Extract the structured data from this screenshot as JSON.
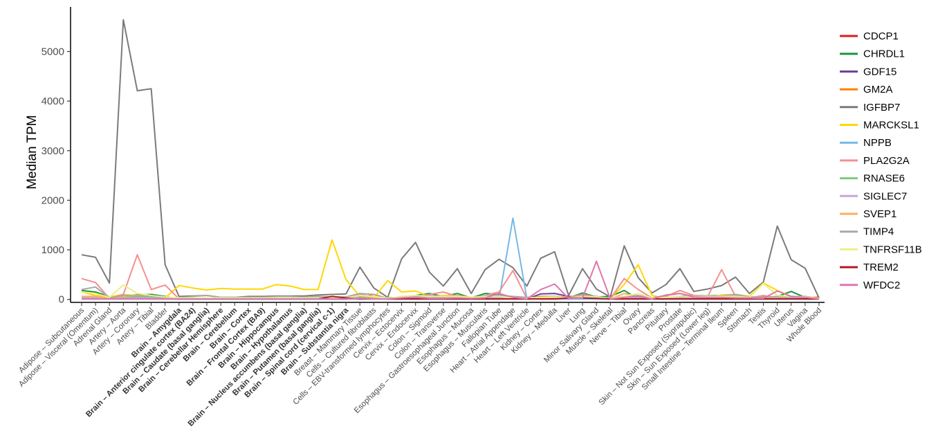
{
  "chart_data": {
    "type": "line",
    "title": "",
    "xlabel": "",
    "ylabel": "Median TPM",
    "ylim": [
      -60,
      5900
    ],
    "yticks": [
      0,
      1000,
      2000,
      3000,
      4000,
      5000
    ],
    "grid": false,
    "legend_position": "right",
    "categories": [
      "Adipose – Subcutaneous",
      "Adipose – Visceral (Omentum)",
      "Adrenal Gland",
      "Artery – Aorta",
      "Artery – Coronary",
      "Artery – Tibial",
      "Bladder",
      "Brain – Amygdala",
      "Brain – Anterior cingulate cortex (BA24)",
      "Brain – Caudate (basal ganglia)",
      "Brain – Cerebellar Hemisphere",
      "Brain – Cerebellum",
      "Brain – Cortex",
      "Brain – Frontal Cortex (BA9)",
      "Brain – Hippocampus",
      "Brain – Hypothalamus",
      "Brain – Nucleus accumbens (basal ganglia)",
      "Brain – Putamen (basal ganglia)",
      "Brain – Spinal cord (cervical c-1)",
      "Brain – Substantia nigra",
      "Breast – Mammary Tissue",
      "Cells – Cultured fibroblasts",
      "Cells – EBV-transformed lymphocytes",
      "Cervix – Ectocervix",
      "Cervix – Endocervix",
      "Colon – Sigmoid",
      "Colon – Transverse",
      "Esophagus – Gastroesophageal Junction",
      "Esophagus – Mucosa",
      "Esophagus – Muscularis",
      "Fallopian Tube",
      "Heart – Atrial Appendage",
      "Heart – Left Ventricle",
      "Kidney – Cortex",
      "Kidney – Medulla",
      "Liver",
      "Lung",
      "Minor Salivary Gland",
      "Muscle – Skeletal",
      "Nerve – Tibial",
      "Ovary",
      "Pancreas",
      "Pituitary",
      "Prostate",
      "Skin – Not Sun Exposed (Suprapubic)",
      "Skin – Sun Exposed (Lower leg)",
      "Small Intestine – Terminal Ileum",
      "Spleen",
      "Stomach",
      "Testis",
      "Thyroid",
      "Uterus",
      "Vagina",
      "Whole Blood"
    ],
    "bold_categories": [
      "Brain – Amygdala",
      "Brain – Anterior cingulate cortex (BA24)",
      "Brain – Caudate (basal ganglia)",
      "Brain – Cerebellar Hemisphere",
      "Brain – Cerebellum",
      "Brain – Cortex",
      "Brain – Frontal Cortex (BA9)",
      "Brain – Hippocampus",
      "Brain – Hypothalamus",
      "Brain – Nucleus accumbens (basal ganglia)",
      "Brain – Putamen (basal ganglia)",
      "Brain – Spinal cord (cervical c-1)",
      "Brain – Substantia nigra"
    ],
    "series": [
      {
        "name": "CDCP1",
        "color": "#e41a1c",
        "values": [
          20,
          20,
          10,
          10,
          15,
          15,
          10,
          5,
          5,
          5,
          5,
          5,
          5,
          5,
          5,
          5,
          5,
          5,
          5,
          5,
          20,
          30,
          5,
          10,
          10,
          20,
          15,
          30,
          20,
          10,
          20,
          10,
          5,
          20,
          20,
          5,
          30,
          20,
          5,
          10,
          10,
          10,
          20,
          20,
          20,
          20,
          20,
          10,
          15,
          5,
          20,
          10,
          10,
          5
        ]
      },
      {
        "name": "CHRDL1",
        "color": "#1a9641",
        "values": [
          180,
          150,
          50,
          80,
          90,
          100,
          60,
          5,
          5,
          5,
          5,
          5,
          5,
          5,
          5,
          5,
          5,
          5,
          5,
          5,
          100,
          40,
          5,
          40,
          80,
          120,
          60,
          120,
          30,
          120,
          100,
          20,
          5,
          20,
          40,
          30,
          130,
          50,
          60,
          180,
          10,
          20,
          20,
          60,
          80,
          70,
          80,
          50,
          30,
          20,
          60,
          160,
          40,
          10
        ]
      },
      {
        "name": "GDF15",
        "color": "#6a3d9a",
        "values": [
          20,
          20,
          30,
          10,
          10,
          20,
          10,
          10,
          10,
          10,
          10,
          10,
          10,
          10,
          10,
          10,
          10,
          10,
          10,
          10,
          20,
          30,
          10,
          20,
          20,
          20,
          20,
          20,
          30,
          20,
          40,
          20,
          10,
          110,
          120,
          60,
          50,
          30,
          20,
          30,
          20,
          20,
          30,
          30,
          30,
          30,
          20,
          20,
          30,
          20,
          30,
          20,
          20,
          10
        ]
      },
      {
        "name": "GM2A",
        "color": "#ff7f00",
        "values": [
          30,
          40,
          30,
          30,
          40,
          30,
          30,
          20,
          20,
          20,
          20,
          20,
          20,
          20,
          20,
          20,
          20,
          20,
          20,
          20,
          40,
          100,
          20,
          40,
          40,
          60,
          60,
          50,
          40,
          60,
          60,
          30,
          20,
          60,
          60,
          40,
          80,
          50,
          20,
          50,
          40,
          20,
          40,
          50,
          40,
          40,
          50,
          40,
          40,
          60,
          40,
          40,
          30,
          50
        ]
      },
      {
        "name": "IGFBP7",
        "color": "#7a7a7a",
        "values": [
          900,
          850,
          330,
          5640,
          4210,
          4250,
          700,
          60,
          70,
          80,
          40,
          40,
          60,
          60,
          70,
          70,
          70,
          90,
          100,
          110,
          650,
          230,
          40,
          820,
          1150,
          550,
          270,
          620,
          120,
          600,
          810,
          640,
          270,
          830,
          960,
          80,
          620,
          210,
          50,
          1080,
          440,
          130,
          300,
          620,
          160,
          210,
          280,
          450,
          120,
          350,
          1480,
          800,
          630,
          30
        ]
      },
      {
        "name": "MARCKSL1",
        "color": "#ffd700",
        "values": [
          150,
          80,
          50,
          100,
          80,
          60,
          30,
          280,
          230,
          190,
          220,
          210,
          210,
          210,
          300,
          270,
          200,
          200,
          1200,
          400,
          60,
          30,
          380,
          150,
          170,
          60,
          80,
          80,
          40,
          60,
          40,
          30,
          20,
          30,
          60,
          20,
          20,
          30,
          20,
          300,
          700,
          80,
          20,
          60,
          50,
          40,
          90,
          100,
          60,
          330,
          180,
          60,
          20,
          10
        ]
      },
      {
        "name": "NPPB",
        "color": "#74b9e7",
        "values": [
          5,
          5,
          5,
          5,
          5,
          5,
          5,
          5,
          5,
          5,
          5,
          5,
          5,
          5,
          5,
          5,
          5,
          5,
          5,
          5,
          5,
          5,
          5,
          5,
          5,
          5,
          5,
          5,
          5,
          5,
          5,
          1640,
          20,
          5,
          5,
          5,
          5,
          5,
          5,
          5,
          5,
          5,
          5,
          5,
          5,
          5,
          5,
          5,
          5,
          5,
          5,
          5,
          5,
          5
        ]
      },
      {
        "name": "PLA2G2A",
        "color": "#f4908e",
        "values": [
          420,
          340,
          20,
          100,
          900,
          200,
          290,
          10,
          10,
          10,
          10,
          10,
          10,
          10,
          10,
          10,
          10,
          10,
          10,
          10,
          100,
          50,
          10,
          30,
          60,
          100,
          150,
          60,
          30,
          80,
          150,
          580,
          20,
          50,
          60,
          40,
          100,
          50,
          10,
          420,
          200,
          30,
          60,
          180,
          80,
          60,
          600,
          60,
          30,
          80,
          30,
          40,
          60,
          20
        ]
      },
      {
        "name": "RNASE6",
        "color": "#7fc97f",
        "values": [
          40,
          40,
          20,
          30,
          60,
          30,
          30,
          10,
          10,
          10,
          10,
          10,
          10,
          10,
          10,
          10,
          10,
          10,
          10,
          10,
          60,
          10,
          40,
          30,
          40,
          60,
          40,
          50,
          40,
          40,
          50,
          20,
          20,
          30,
          40,
          30,
          50,
          40,
          10,
          60,
          40,
          10,
          40,
          50,
          40,
          50,
          70,
          80,
          30,
          20,
          40,
          30,
          30,
          10
        ]
      },
      {
        "name": "SIGLEC7",
        "color": "#c9a6d8",
        "values": [
          30,
          30,
          10,
          20,
          30,
          20,
          20,
          10,
          10,
          10,
          10,
          10,
          10,
          10,
          10,
          10,
          10,
          10,
          10,
          10,
          30,
          10,
          30,
          20,
          30,
          30,
          30,
          40,
          30,
          30,
          30,
          20,
          20,
          20,
          30,
          20,
          40,
          30,
          10,
          30,
          20,
          10,
          20,
          30,
          30,
          30,
          30,
          60,
          20,
          20,
          20,
          20,
          20,
          20
        ]
      },
      {
        "name": "SVEP1",
        "color": "#fdae61",
        "values": [
          60,
          60,
          20,
          60,
          80,
          60,
          40,
          10,
          10,
          10,
          10,
          10,
          10,
          10,
          10,
          10,
          10,
          10,
          10,
          10,
          80,
          40,
          10,
          60,
          60,
          70,
          60,
          80,
          30,
          70,
          80,
          30,
          20,
          30,
          40,
          20,
          80,
          60,
          10,
          120,
          60,
          20,
          40,
          60,
          50,
          50,
          60,
          40,
          50,
          20,
          50,
          60,
          40,
          10
        ]
      },
      {
        "name": "TIMP4",
        "color": "#a9a9a9",
        "values": [
          200,
          250,
          30,
          80,
          70,
          60,
          40,
          30,
          60,
          80,
          40,
          40,
          40,
          40,
          60,
          60,
          40,
          60,
          50,
          50,
          120,
          100,
          20,
          40,
          60,
          80,
          60,
          70,
          30,
          80,
          80,
          60,
          40,
          40,
          60,
          20,
          80,
          60,
          20,
          60,
          80,
          30,
          80,
          120,
          60,
          60,
          70,
          100,
          50,
          40,
          60,
          60,
          60,
          10
        ]
      },
      {
        "name": "TNFRSF11B",
        "color": "#eeee88",
        "values": [
          150,
          120,
          40,
          290,
          120,
          80,
          50,
          30,
          30,
          30,
          30,
          30,
          30,
          30,
          30,
          30,
          30,
          30,
          30,
          30,
          80,
          60,
          20,
          60,
          80,
          60,
          60,
          60,
          40,
          60,
          60,
          30,
          20,
          40,
          50,
          30,
          60,
          50,
          20,
          60,
          120,
          30,
          40,
          60,
          60,
          60,
          60,
          60,
          40,
          320,
          80,
          60,
          50,
          20
        ]
      },
      {
        "name": "TREM2",
        "color": "#b2182b",
        "values": [
          10,
          10,
          10,
          10,
          10,
          10,
          10,
          10,
          10,
          10,
          10,
          10,
          10,
          10,
          10,
          10,
          10,
          10,
          60,
          30,
          10,
          10,
          10,
          10,
          10,
          10,
          10,
          10,
          10,
          10,
          10,
          10,
          10,
          10,
          10,
          30,
          30,
          20,
          10,
          10,
          10,
          10,
          10,
          10,
          10,
          10,
          10,
          10,
          10,
          10,
          10,
          10,
          10,
          10
        ]
      },
      {
        "name": "WFDC2",
        "color": "#de77ae",
        "values": [
          10,
          10,
          10,
          10,
          10,
          10,
          10,
          10,
          10,
          10,
          10,
          10,
          10,
          10,
          10,
          10,
          10,
          10,
          10,
          10,
          20,
          10,
          10,
          30,
          40,
          20,
          20,
          30,
          20,
          30,
          120,
          40,
          10,
          200,
          310,
          20,
          30,
          770,
          10,
          40,
          60,
          10,
          90,
          120,
          50,
          40,
          40,
          30,
          30,
          20,
          170,
          60,
          40,
          10
        ]
      }
    ]
  }
}
